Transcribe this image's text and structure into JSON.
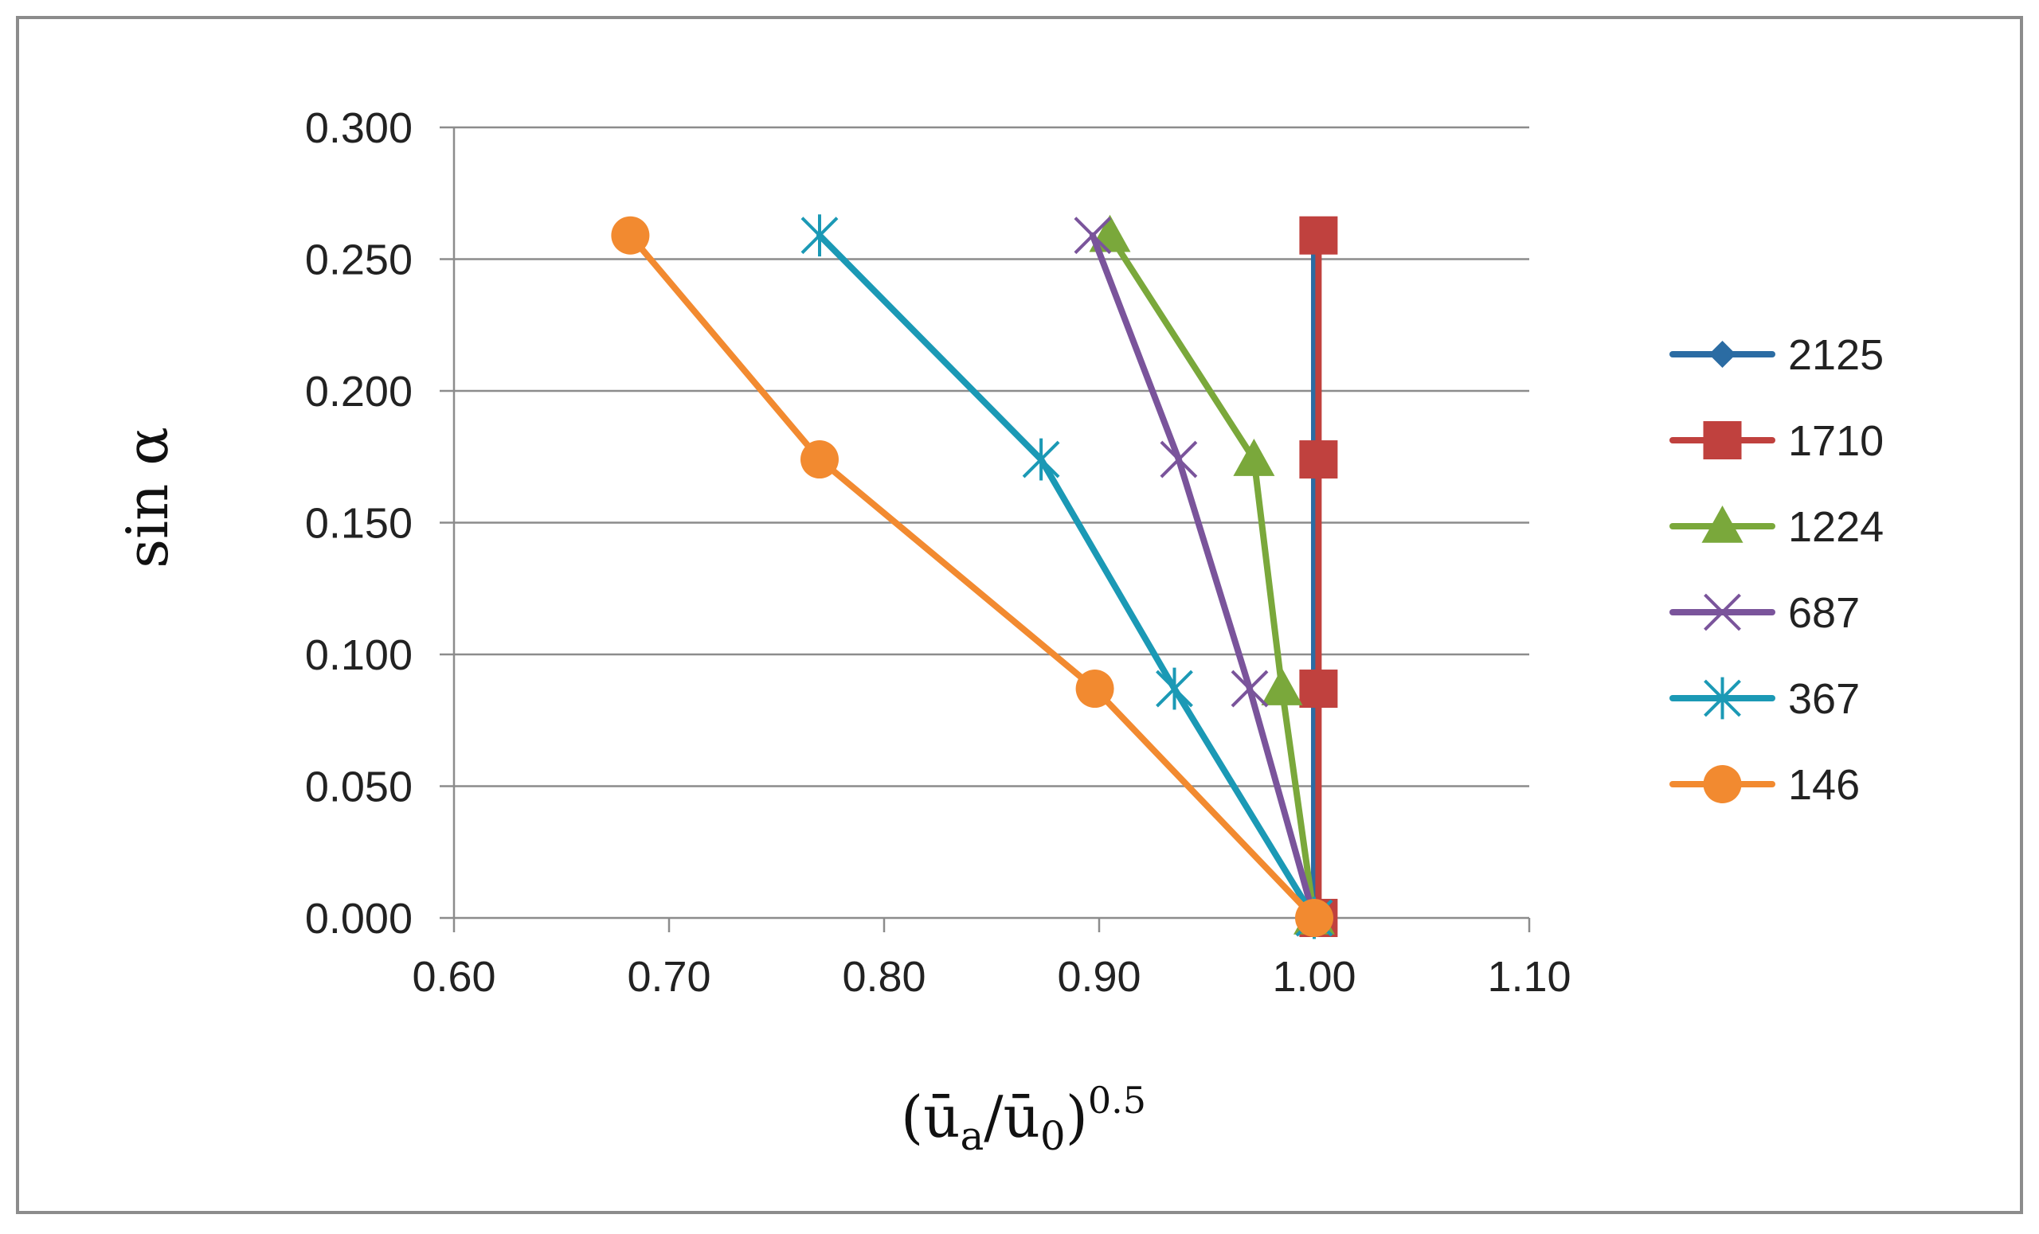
{
  "chart_data": {
    "type": "line",
    "title": "",
    "xlabel_parts": {
      "open": "(",
      "u_a": "ū",
      "sub_a": "a",
      "slash": "/",
      "u_0": "ū",
      "sub_0": "0",
      "close": ")",
      "exp": "0.5"
    },
    "ylabel": "sin α",
    "xlim": [
      0.6,
      1.1
    ],
    "ylim": [
      0.0,
      0.3
    ],
    "x_ticks": [
      "0.60",
      "0.70",
      "0.80",
      "0.90",
      "1.00",
      "1.10"
    ],
    "y_ticks": [
      "0.000",
      "0.050",
      "0.100",
      "0.150",
      "0.200",
      "0.250",
      "0.300"
    ],
    "grid": "horizontal",
    "legend_position": "right",
    "series": [
      {
        "name": "2125",
        "color": "#2b6ca3",
        "marker": "diamond",
        "x": [
          1.0,
          1.0,
          1.0,
          1.0
        ],
        "y": [
          0.0,
          0.087,
          0.174,
          0.259
        ]
      },
      {
        "name": "1710",
        "color": "#c0413e",
        "marker": "square",
        "x": [
          1.002,
          1.002,
          1.002,
          1.002
        ],
        "y": [
          0.0,
          0.087,
          0.174,
          0.259
        ]
      },
      {
        "name": "1224",
        "color": "#7aa83b",
        "marker": "triangle",
        "x": [
          1.0,
          0.985,
          0.972,
          0.905
        ],
        "y": [
          0.0,
          0.087,
          0.174,
          0.259
        ]
      },
      {
        "name": "687",
        "color": "#7a549b",
        "marker": "x",
        "x": [
          1.0,
          0.97,
          0.937,
          0.897
        ],
        "y": [
          0.0,
          0.087,
          0.174,
          0.259
        ]
      },
      {
        "name": "367",
        "color": "#1b99b5",
        "marker": "star",
        "x": [
          1.0,
          0.935,
          0.873,
          0.77
        ],
        "y": [
          0.0,
          0.087,
          0.174,
          0.259
        ]
      },
      {
        "name": "146",
        "color": "#f28a30",
        "marker": "circle",
        "x": [
          1.0,
          0.898,
          0.77,
          0.682
        ],
        "y": [
          0.0,
          0.087,
          0.174,
          0.259
        ]
      }
    ]
  }
}
